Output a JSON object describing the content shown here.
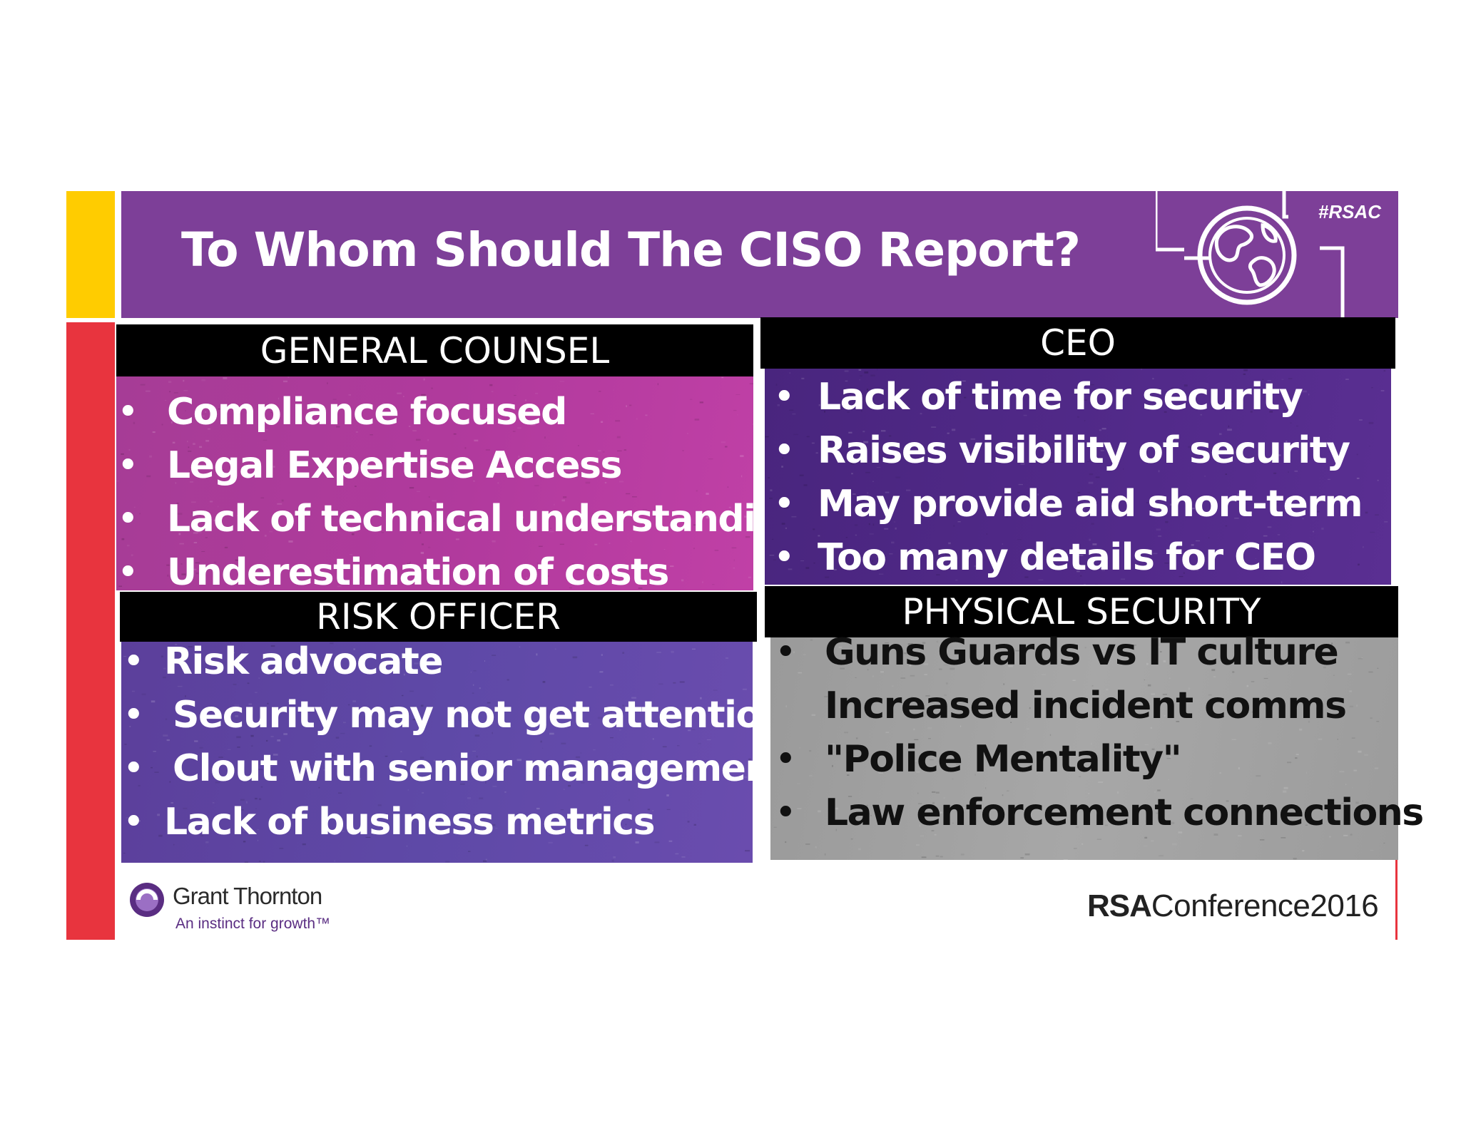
{
  "header": {
    "title": "To Whom Should The CISO Report?",
    "hashtag": "#RSAC"
  },
  "panels": {
    "general_counsel": {
      "label": "GENERAL COUNSEL",
      "items": [
        "Compliance focused",
        "Legal Expertise Access",
        "Lack of technical understanding",
        "Underestimation of costs"
      ]
    },
    "ceo": {
      "label": "CEO",
      "items": [
        "Lack of time for security",
        "Raises visibility of security",
        "May provide aid short-term",
        "Too many details for CEO"
      ]
    },
    "risk_officer": {
      "label": "RISK OFFICER",
      "items": [
        "Risk advocate",
        "Security may not get attention",
        "Clout with senior management",
        "Lack of business metrics"
      ]
    },
    "physical_security": {
      "label": "PHYSICAL SECURITY",
      "items": [
        "Guns Guards vs IT culture",
        "Increased incident comms",
        "\"Police Mentality\"",
        "Law enforcement connections"
      ]
    }
  },
  "bullet": "•",
  "footer": {
    "grant_thornton_name": "Grant Thornton",
    "grant_thornton_tagline": "An instinct for growth™",
    "rsa_brand": "RSA",
    "rsa_event": "Conference2016"
  },
  "colors": {
    "header_purple": "#7d3f98",
    "accent_yellow": "#ffcc00",
    "accent_red": "#e8343e",
    "general_counsel_panel": "#b13a9d",
    "ceo_panel": "#522a8a",
    "risk_officer_panel": "#5e49a7",
    "physical_security_panel": "#a7a7a7"
  },
  "icons": [
    "globe-icon",
    "grant-thornton-logo-icon"
  ]
}
